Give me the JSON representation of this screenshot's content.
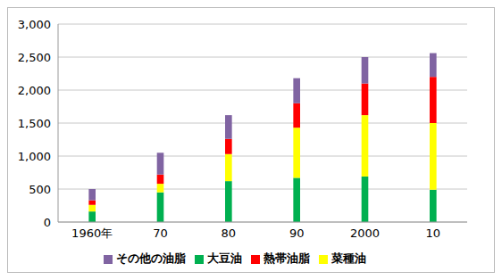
{
  "chart_data": {
    "type": "bar",
    "stacked": true,
    "grid": true,
    "legend": "bottom",
    "categories": [
      "1960年",
      "70",
      "80",
      "90",
      "2000",
      "10"
    ],
    "series": [
      {
        "name": "大豆油",
        "color": "#00b050",
        "values": [
          160,
          450,
          620,
          670,
          690,
          490
        ]
      },
      {
        "name": "菜種油",
        "color": "#ffff00",
        "values": [
          100,
          130,
          410,
          760,
          930,
          1010
        ]
      },
      {
        "name": "熱帯油脂",
        "color": "#ff0000",
        "values": [
          70,
          140,
          230,
          370,
          480,
          700
        ]
      },
      {
        "name": "その他の油脂",
        "color": "#8064a2",
        "values": [
          170,
          330,
          360,
          380,
          400,
          360
        ]
      }
    ],
    "ylim": [
      0,
      3000
    ],
    "yticks": [
      0,
      500,
      {
        "value": 1000,
        "label": "1,000"
      },
      {
        "value": 1500,
        "label": "1,500"
      },
      {
        "value": 2000,
        "label": "2,000"
      },
      {
        "value": 2500,
        "label": "2,500"
      },
      {
        "value": 3000,
        "label": "3,000"
      }
    ]
  }
}
